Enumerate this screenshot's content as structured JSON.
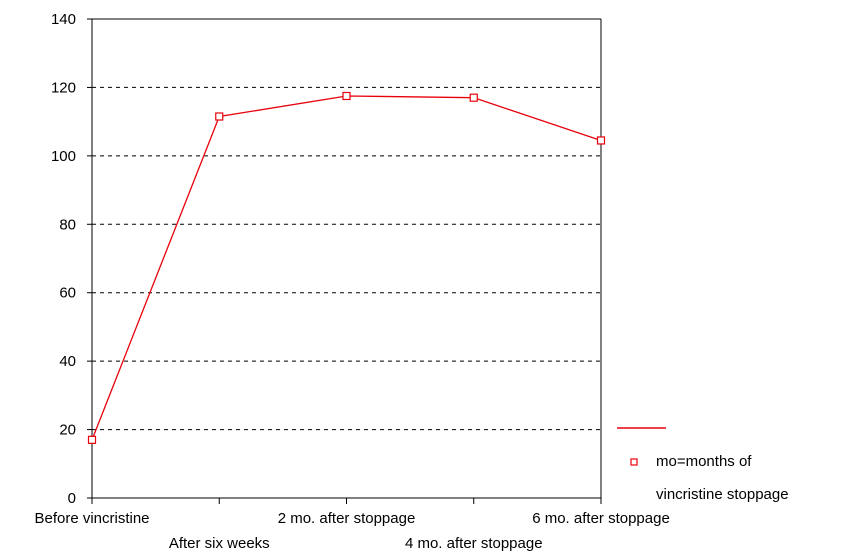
{
  "chart_data": {
    "type": "line",
    "title": "",
    "xlabel": "",
    "ylabel": "",
    "categories": [
      "Before vincristine",
      "After six weeks",
      "2 mo. after stoppage",
      "4 mo. after stoppage",
      "6 mo. after stoppage"
    ],
    "series": [
      {
        "name": "mo=months of vincristine stoppage",
        "values": [
          17,
          111.5,
          117.5,
          117,
          104.5
        ],
        "color": "#e8000b",
        "marker": "square"
      }
    ],
    "ylim": [
      0,
      140
    ],
    "yticks": [
      "0",
      "20",
      "40",
      "60",
      "80",
      "100",
      "120",
      "140"
    ],
    "grid": "horizontal-dashed",
    "legend_position": "bottom-right",
    "legend_lines": [
      "mo=months of",
      "vincristine stoppage"
    ]
  }
}
